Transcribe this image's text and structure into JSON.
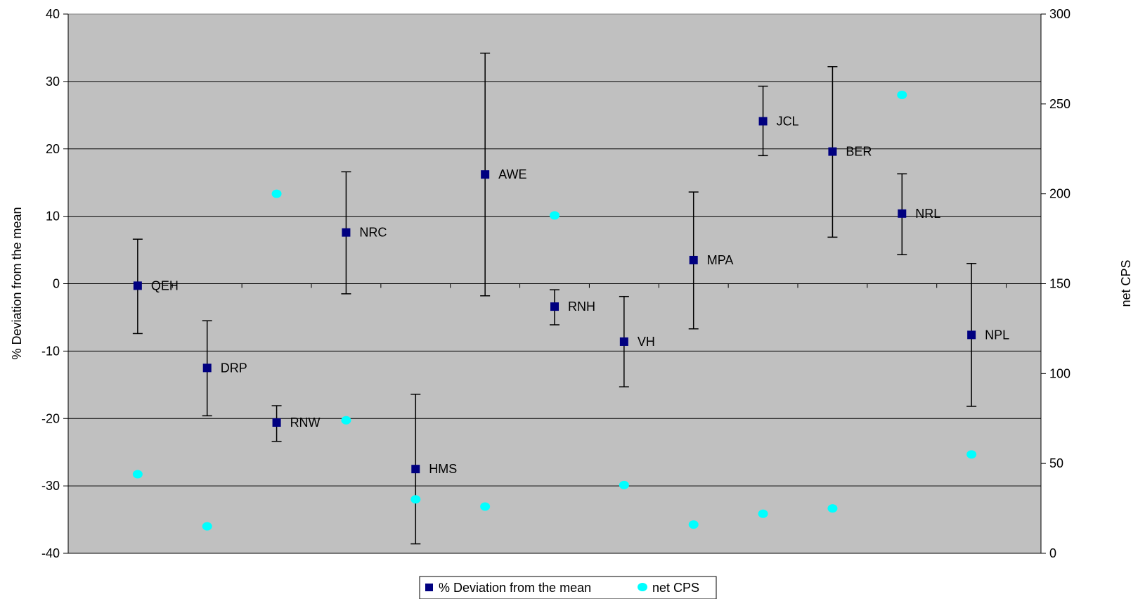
{
  "chart_data": {
    "type": "scatter",
    "colors": {
      "plot_background": "#c0c0c0",
      "deviation_marker": "#000080",
      "cps_marker": "#00ffff",
      "gridline": "#000000"
    },
    "left_axis": {
      "label": "% Deviation from the mean",
      "min": -40,
      "max": 40,
      "ticks": [
        "-40",
        "-30",
        "-20",
        "-10",
        "0",
        "10",
        "20",
        "30",
        "40"
      ]
    },
    "right_axis": {
      "label": "net CPS",
      "min": 0,
      "max": 300,
      "ticks": [
        "0",
        "50",
        "100",
        "150",
        "200",
        "250",
        "300"
      ]
    },
    "grid": "horizontal major gridlines",
    "legend_position": "bottom-center",
    "series": [
      {
        "name": "% Deviation from the mean",
        "axis": "left",
        "marker": "square",
        "points": [
          {
            "label": "QEH",
            "x": 1,
            "y": -0.3,
            "err_low": -7.4,
            "err_high": 6.6
          },
          {
            "label": "DRP",
            "x": 2,
            "y": -12.5,
            "err_low": -19.6,
            "err_high": -5.5
          },
          {
            "label": "RNW",
            "x": 3,
            "y": -20.6,
            "err_low": -23.4,
            "err_high": -18.1
          },
          {
            "label": "NRC",
            "x": 4,
            "y": 7.6,
            "err_low": -1.5,
            "err_high": 16.6
          },
          {
            "label": "HMS",
            "x": 5,
            "y": -27.5,
            "err_low": -38.6,
            "err_high": -16.4
          },
          {
            "label": "AWE",
            "x": 6,
            "y": 16.2,
            "err_low": -1.8,
            "err_high": 34.2
          },
          {
            "label": "RNH",
            "x": 7,
            "y": -3.4,
            "err_low": -6.1,
            "err_high": -0.9
          },
          {
            "label": "VH",
            "x": 8,
            "y": -8.6,
            "err_low": -15.3,
            "err_high": -1.9
          },
          {
            "label": "MPA",
            "x": 9,
            "y": 3.5,
            "err_low": -6.7,
            "err_high": 13.6
          },
          {
            "label": "JCL",
            "x": 10,
            "y": 24.1,
            "err_low": 19.0,
            "err_high": 29.3
          },
          {
            "label": "BER",
            "x": 11,
            "y": 19.6,
            "err_low": 6.9,
            "err_high": 32.2
          },
          {
            "label": "NRL",
            "x": 12,
            "y": 10.4,
            "err_low": 4.3,
            "err_high": 16.3
          },
          {
            "label": "NPL",
            "x": 13,
            "y": -7.6,
            "err_low": -18.2,
            "err_high": 3.0
          }
        ]
      },
      {
        "name": "net CPS",
        "axis": "right",
        "marker": "circle",
        "points": [
          {
            "x": 1,
            "y": 44
          },
          {
            "x": 2,
            "y": 15
          },
          {
            "x": 3,
            "y": 200
          },
          {
            "x": 4,
            "y": 74
          },
          {
            "x": 5,
            "y": 30
          },
          {
            "x": 6,
            "y": 26
          },
          {
            "x": 7,
            "y": 188
          },
          {
            "x": 8,
            "y": 38
          },
          {
            "x": 9,
            "y": 16
          },
          {
            "x": 10,
            "y": 22
          },
          {
            "x": 11,
            "y": 25
          },
          {
            "x": 12,
            "y": 255
          },
          {
            "x": 13,
            "y": 55
          }
        ]
      }
    ]
  }
}
